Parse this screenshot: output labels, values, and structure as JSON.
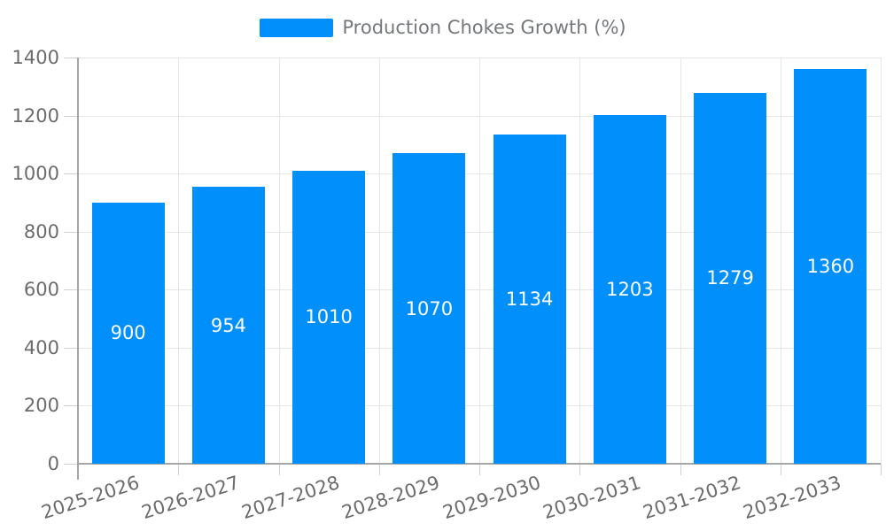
{
  "legend": {
    "label": "Production Chokes Growth (%)",
    "marker_color": "#008FFB"
  },
  "chart_data": {
    "type": "bar",
    "title": "",
    "xlabel": "",
    "ylabel": "",
    "categories": [
      "2025-2026",
      "2026-2027",
      "2027-2028",
      "2028-2029",
      "2029-2030",
      "2030-2031",
      "2031-2032",
      "2032-2033"
    ],
    "series": [
      {
        "name": "Production Chokes Growth (%)",
        "values": [
          900,
          954,
          1010,
          1070,
          1134,
          1203,
          1279,
          1360
        ]
      }
    ],
    "value_labels": [
      "900",
      "954",
      "1010",
      "1070",
      "1134",
      "1203",
      "1279",
      "1360"
    ],
    "ylim": [
      0,
      1400
    ],
    "yticks": [
      0,
      200,
      400,
      600,
      800,
      1000,
      1200,
      1400
    ],
    "grid": true,
    "legend_position": "top",
    "bar_color": "#008FFB",
    "value_label_color": "#ffffff"
  },
  "colors": {
    "bar": "#008FFB",
    "grid": "#e6e6e6",
    "axis": "#a6a6a6",
    "tick": "#cfcfcf",
    "axis_text": "#6b6b6b",
    "legend_text": "#75787b",
    "background": "#ffffff"
  }
}
